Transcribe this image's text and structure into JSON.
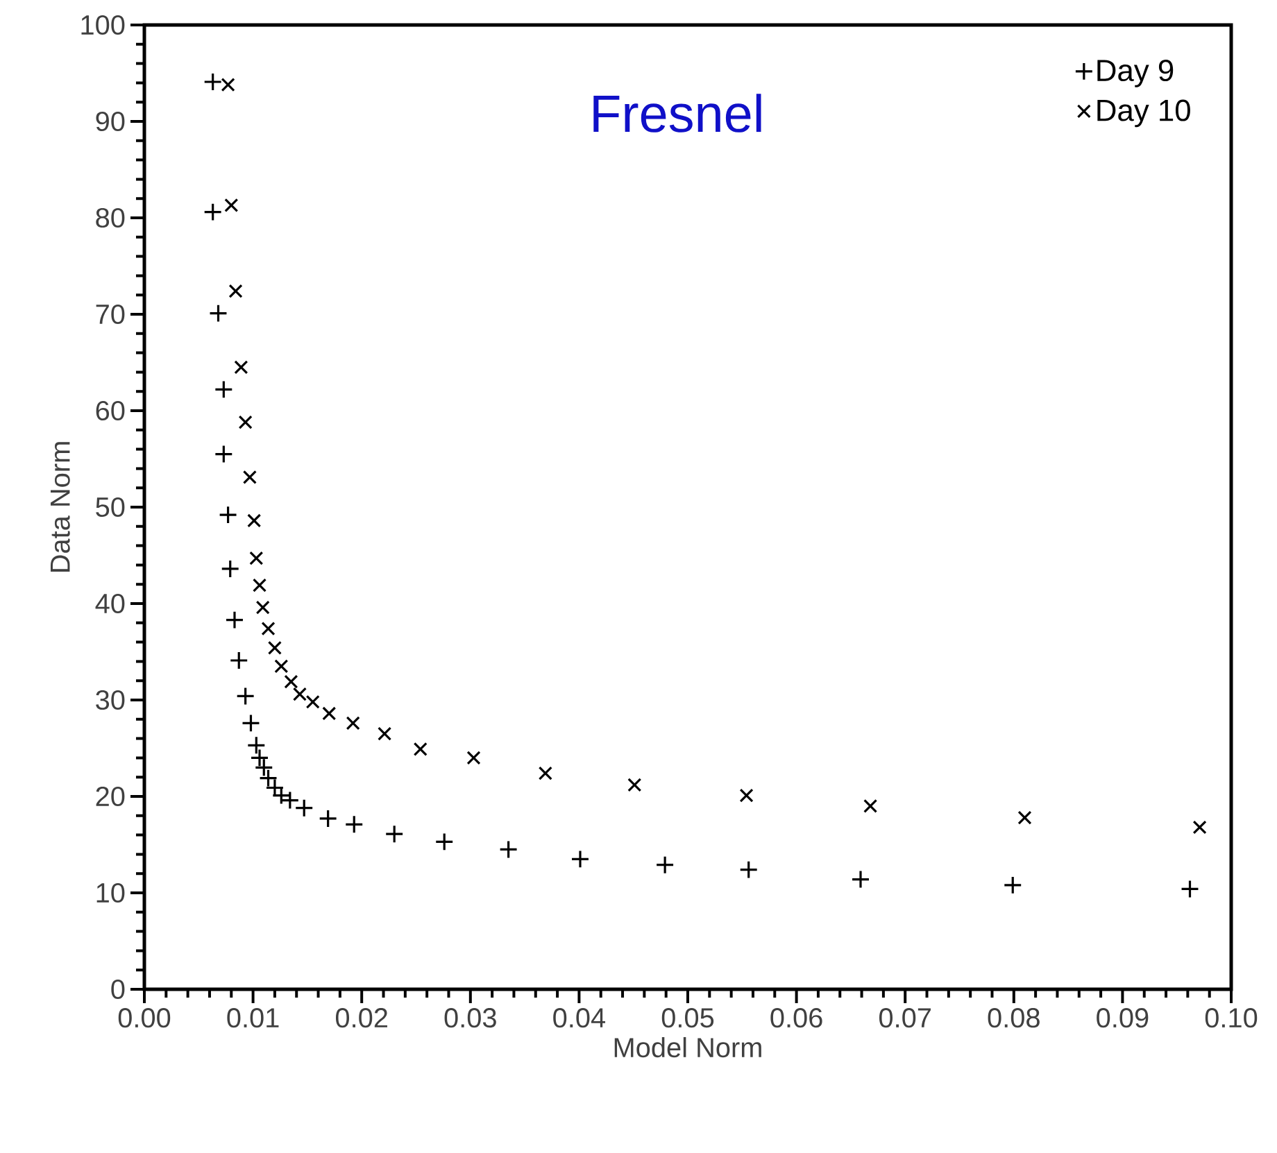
{
  "chart_data": {
    "type": "scatter",
    "title": "Fresnel",
    "xlabel": "Model Norm",
    "ylabel": "Data Norm",
    "xlim": [
      0,
      0.1
    ],
    "ylim": [
      0,
      100
    ],
    "xticks": [
      {
        "value": 0,
        "label": "0.00"
      },
      {
        "value": 0.01,
        "label": "0.01"
      },
      {
        "value": 0.02,
        "label": "0.02"
      },
      {
        "value": 0.03,
        "label": "0.03"
      },
      {
        "value": 0.04,
        "label": "0.04"
      },
      {
        "value": 0.05,
        "label": "0.05"
      },
      {
        "value": 0.06,
        "label": "0.06"
      },
      {
        "value": 0.07,
        "label": "0.07"
      },
      {
        "value": 0.08,
        "label": "0.08"
      },
      {
        "value": 0.09,
        "label": "0.09"
      },
      {
        "value": 0.1,
        "label": "0.10"
      }
    ],
    "yticks": [
      0,
      10,
      20,
      30,
      40,
      50,
      60,
      70,
      80,
      90,
      100
    ],
    "grid": false,
    "legend": "top right",
    "series": [
      {
        "name": "Day 9",
        "color": "#000000",
        "marker": "plus",
        "x": [
          0.0063,
          0.0063,
          0.0068,
          0.0073,
          0.0073,
          0.0077,
          0.0079,
          0.0083,
          0.0087,
          0.0093,
          0.0098,
          0.0103,
          0.0106,
          0.011,
          0.0114,
          0.012,
          0.0126,
          0.0134,
          0.0147,
          0.0169,
          0.0193,
          0.023,
          0.0276,
          0.0335,
          0.0401,
          0.0479,
          0.0556,
          0.0659,
          0.0799,
          0.0962
        ],
        "values": [
          94.1,
          80.6,
          70.1,
          62.2,
          55.5,
          49.2,
          43.6,
          38.3,
          34.1,
          30.4,
          27.6,
          25.3,
          24.0,
          23.0,
          21.9,
          20.9,
          20.1,
          19.6,
          18.8,
          17.7,
          17.1,
          16.1,
          15.3,
          14.5,
          13.5,
          12.9,
          12.4,
          11.4,
          10.8,
          10.4
        ]
      },
      {
        "name": "Day 10",
        "color": "#000000",
        "marker": "cross",
        "x": [
          0.0077,
          0.008,
          0.0084,
          0.0089,
          0.0093,
          0.0097,
          0.0101,
          0.0103,
          0.0106,
          0.0109,
          0.0114,
          0.012,
          0.0126,
          0.0135,
          0.0143,
          0.0155,
          0.017,
          0.0192,
          0.0221,
          0.0254,
          0.0303,
          0.0369,
          0.0451,
          0.0554,
          0.0668,
          0.081,
          0.0971
        ],
        "values": [
          93.8,
          81.3,
          72.4,
          64.5,
          58.8,
          53.1,
          48.6,
          44.7,
          41.9,
          39.6,
          37.4,
          35.4,
          33.5,
          31.9,
          30.6,
          29.8,
          28.6,
          27.6,
          26.5,
          24.9,
          24.0,
          22.4,
          21.2,
          20.1,
          19.0,
          17.8,
          16.8
        ]
      }
    ]
  }
}
